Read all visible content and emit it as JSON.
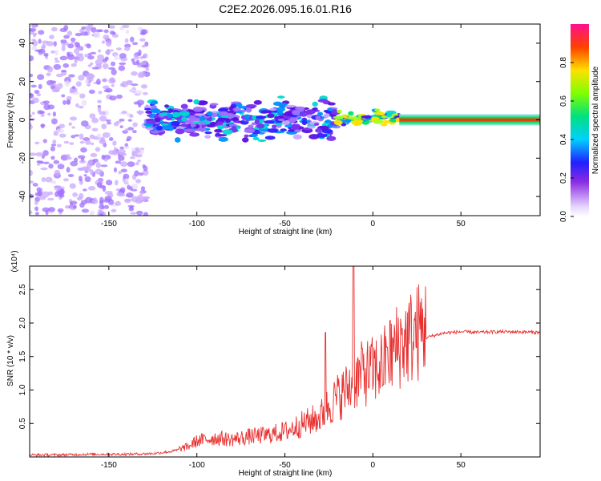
{
  "title": "C2E2.2026.095.16.01.R16",
  "chart_data": [
    {
      "type": "heatmap",
      "xlabel": "Height of straight line (km)",
      "ylabel": "Frequency (Hz)",
      "xlim": [
        -195,
        95
      ],
      "ylim": [
        -50,
        50
      ],
      "xticks": [
        -150,
        -100,
        -50,
        0,
        50
      ],
      "yticks": [
        -40,
        -20,
        0,
        20,
        40
      ],
      "colorbar": {
        "label": "Normalized spectral amplitude",
        "range": [
          0,
          1
        ],
        "ticks": [
          "0.0",
          "0.2",
          "0.4",
          "0.6",
          "0.8"
        ]
      },
      "regions": [
        {
          "name": "diffuse scatter",
          "x": [
            -195,
            -128
          ],
          "y": [
            -50,
            50
          ],
          "amplitude": 0.2
        },
        {
          "name": "noisy band",
          "x": [
            -128,
            -20
          ],
          "y": [
            -10,
            10
          ],
          "amplitude": 0.4
        },
        {
          "name": "narrowing band",
          "x": [
            -20,
            15
          ],
          "y": [
            -3,
            5
          ],
          "amplitude": 0.7
        },
        {
          "name": "carrier line",
          "x": [
            15,
            95
          ],
          "y": [
            -1,
            1
          ],
          "amplitude": 0.95
        }
      ]
    },
    {
      "type": "line",
      "xlabel": "Height of straight line (km)",
      "ylabel": "SNR (10 * v/v)",
      "yscale_label": "(x10⁴)",
      "xlim": [
        -195,
        95
      ],
      "ylim": [
        0,
        2.85
      ],
      "xticks": [
        -150,
        -100,
        -50,
        0,
        50
      ],
      "yticks": [
        0.5,
        1.0,
        1.5,
        2.0,
        2.5
      ],
      "color": "#e83030",
      "series": [
        {
          "name": "SNR",
          "x": [
            -195,
            -180,
            -160,
            -140,
            -125,
            -115,
            -105,
            -100,
            -90,
            -80,
            -70,
            -60,
            -50,
            -40,
            -30,
            -25,
            -20,
            -15,
            -12,
            -10,
            -5,
            0,
            5,
            10,
            15,
            20,
            25,
            30,
            40,
            50,
            60,
            70,
            80,
            95
          ],
          "y": [
            0.03,
            0.03,
            0.04,
            0.04,
            0.05,
            0.08,
            0.14,
            0.22,
            0.26,
            0.24,
            0.28,
            0.3,
            0.35,
            0.45,
            0.55,
            0.7,
            0.82,
            0.92,
            1.0,
            1.06,
            1.15,
            1.18,
            1.25,
            1.4,
            1.55,
            1.62,
            1.7,
            1.78,
            1.85,
            1.87,
            1.86,
            1.87,
            1.87,
            1.86
          ]
        }
      ],
      "peaks": [
        {
          "x": -27,
          "y": 1.86
        },
        {
          "x": -11,
          "y": 2.85
        },
        {
          "x": -6,
          "y": 1.62
        },
        {
          "x": 8,
          "y": 1.64
        }
      ]
    }
  ]
}
